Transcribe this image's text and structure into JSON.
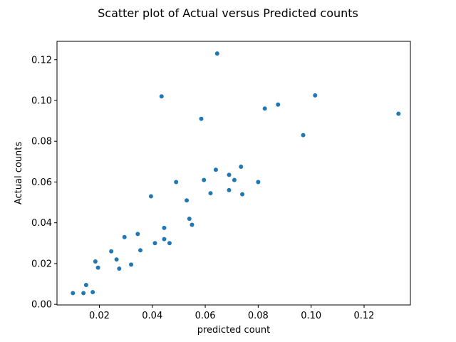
{
  "chart_data": {
    "type": "scatter",
    "title": "Scatter plot of Actual versus Predicted counts",
    "xlabel": "predicted count",
    "ylabel": "Actual counts",
    "xlim": [
      0.004,
      0.1375
    ],
    "ylim": [
      -0.0003,
      0.129
    ],
    "x_ticks": [
      0.02,
      0.04,
      0.06,
      0.08,
      0.1,
      0.12
    ],
    "x_tick_labels": [
      "0.02",
      "0.04",
      "0.06",
      "0.08",
      "0.10",
      "0.12"
    ],
    "y_ticks": [
      0.0,
      0.02,
      0.04,
      0.06,
      0.08,
      0.1,
      0.12
    ],
    "y_tick_labels": [
      "0.00",
      "0.02",
      "0.04",
      "0.06",
      "0.08",
      "0.10",
      "0.12"
    ],
    "grid": false,
    "marker_color": "#1f77b4",
    "points": [
      {
        "x": 0.01,
        "y": 0.0055
      },
      {
        "x": 0.014,
        "y": 0.0055
      },
      {
        "x": 0.015,
        "y": 0.0095
      },
      {
        "x": 0.0175,
        "y": 0.006
      },
      {
        "x": 0.0185,
        "y": 0.021
      },
      {
        "x": 0.0195,
        "y": 0.018
      },
      {
        "x": 0.0245,
        "y": 0.026
      },
      {
        "x": 0.0265,
        "y": 0.022
      },
      {
        "x": 0.0275,
        "y": 0.0175
      },
      {
        "x": 0.0295,
        "y": 0.033
      },
      {
        "x": 0.032,
        "y": 0.0195
      },
      {
        "x": 0.0345,
        "y": 0.0345
      },
      {
        "x": 0.0355,
        "y": 0.0265
      },
      {
        "x": 0.0395,
        "y": 0.053
      },
      {
        "x": 0.041,
        "y": 0.03
      },
      {
        "x": 0.0435,
        "y": 0.102
      },
      {
        "x": 0.0445,
        "y": 0.0375
      },
      {
        "x": 0.0445,
        "y": 0.032
      },
      {
        "x": 0.0465,
        "y": 0.03
      },
      {
        "x": 0.049,
        "y": 0.06
      },
      {
        "x": 0.053,
        "y": 0.051
      },
      {
        "x": 0.054,
        "y": 0.042
      },
      {
        "x": 0.055,
        "y": 0.039
      },
      {
        "x": 0.0585,
        "y": 0.091
      },
      {
        "x": 0.0595,
        "y": 0.061
      },
      {
        "x": 0.062,
        "y": 0.0545
      },
      {
        "x": 0.064,
        "y": 0.066
      },
      {
        "x": 0.0645,
        "y": 0.123
      },
      {
        "x": 0.069,
        "y": 0.0635
      },
      {
        "x": 0.069,
        "y": 0.056
      },
      {
        "x": 0.071,
        "y": 0.061
      },
      {
        "x": 0.0735,
        "y": 0.0675
      },
      {
        "x": 0.074,
        "y": 0.054
      },
      {
        "x": 0.08,
        "y": 0.06
      },
      {
        "x": 0.0825,
        "y": 0.096
      },
      {
        "x": 0.0875,
        "y": 0.098
      },
      {
        "x": 0.097,
        "y": 0.083
      },
      {
        "x": 0.1015,
        "y": 0.1025
      },
      {
        "x": 0.133,
        "y": 0.0935
      }
    ]
  }
}
